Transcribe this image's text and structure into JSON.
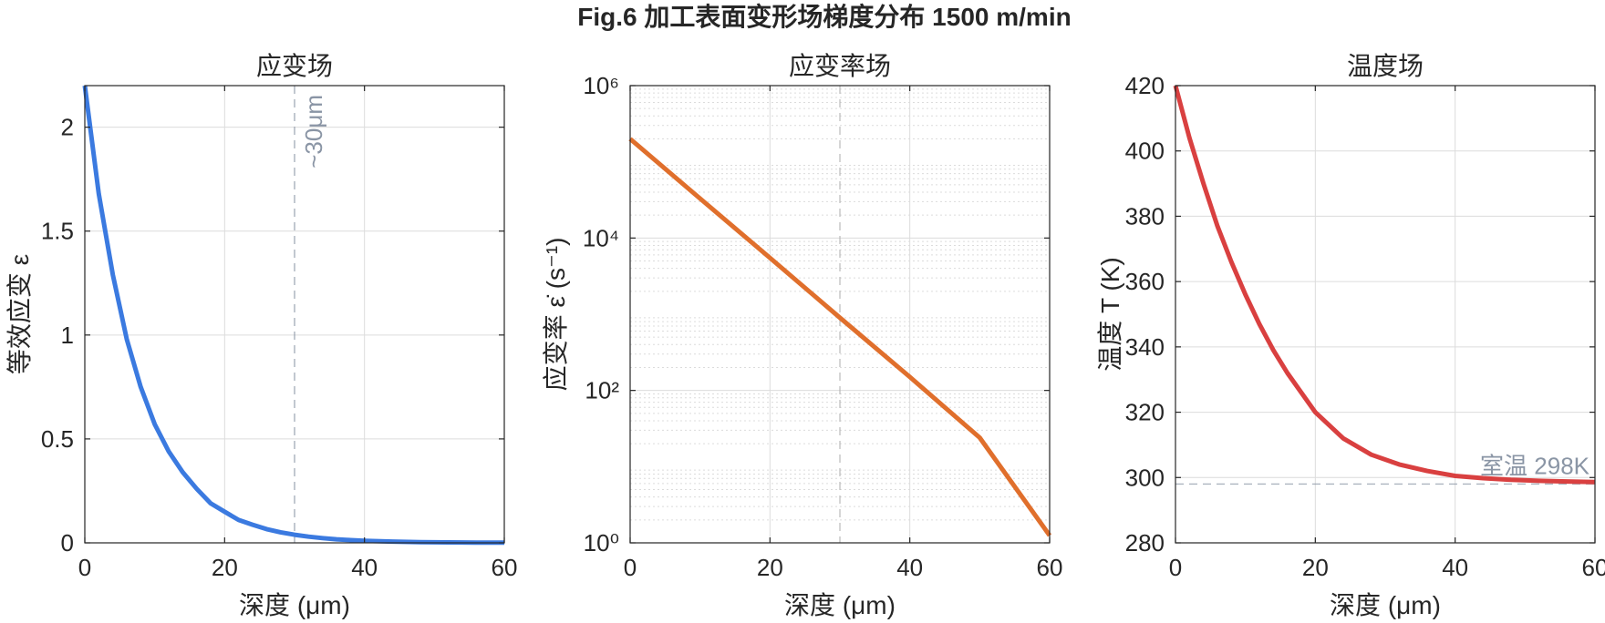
{
  "figure": {
    "title": "Fig.6 加工表面变形场梯度分布 1500 m/min"
  },
  "chart_data": [
    {
      "type": "line",
      "title": "应变场",
      "xlabel": "深度 (μm)",
      "ylabel": "等效应变 ε",
      "xlim": [
        0,
        60
      ],
      "ylim": [
        0,
        2.2
      ],
      "y_scale": "linear",
      "xticks": [
        0,
        20,
        40,
        60
      ],
      "yticks": [
        0,
        0.5,
        1,
        1.5,
        2
      ],
      "ytick_labels": [
        "0",
        "0.5",
        "1",
        "1.5",
        "2"
      ],
      "grid": true,
      "series": [
        {
          "color": "#3b7ae0",
          "x": [
            0,
            2,
            4,
            6,
            8,
            10,
            12,
            14,
            16,
            18,
            20,
            22,
            24,
            26,
            28,
            30,
            32,
            34,
            36,
            38,
            40,
            44,
            48,
            52,
            56,
            60
          ],
          "y": [
            2.2,
            1.68,
            1.29,
            0.98,
            0.75,
            0.57,
            0.44,
            0.34,
            0.26,
            0.19,
            0.15,
            0.11,
            0.087,
            0.066,
            0.051,
            0.039,
            0.03,
            0.023,
            0.017,
            0.013,
            0.01,
            0.006,
            0.003,
            0.002,
            0.001,
            0.001
          ]
        }
      ],
      "reference_lines": [
        {
          "orientation": "vertical",
          "value": 30,
          "label": "~30μm",
          "color": "#8a95a5"
        }
      ]
    },
    {
      "type": "line",
      "title": "应变率场",
      "xlabel": "深度 (μm)",
      "ylabel": "应变率 ε̇ (s⁻¹)",
      "xlim": [
        0,
        60
      ],
      "ylim": [
        1,
        1000000
      ],
      "y_scale": "log",
      "xticks": [
        0,
        20,
        40,
        60
      ],
      "yticks": [
        1,
        100,
        10000,
        1000000
      ],
      "ytick_labels": [
        "10⁰",
        "10²",
        "10⁴",
        "10⁶"
      ],
      "grid": true,
      "minor_grid": true,
      "series": [
        {
          "color": "#e06f2c",
          "x": [
            0,
            10,
            20,
            30,
            40,
            50,
            60
          ],
          "y": [
            200000,
            33000,
            5500,
            900,
            150,
            24,
            1.25
          ]
        }
      ],
      "reference_lines": [
        {
          "orientation": "vertical",
          "value": 30,
          "label": "",
          "color": "#b0b0b0"
        }
      ]
    },
    {
      "type": "line",
      "title": "温度场",
      "xlabel": "深度 (μm)",
      "ylabel": "温度 T (K)",
      "xlim": [
        0,
        60
      ],
      "ylim": [
        280,
        420
      ],
      "y_scale": "linear",
      "xticks": [
        0,
        20,
        40,
        60
      ],
      "yticks": [
        280,
        300,
        320,
        340,
        360,
        380,
        400,
        420
      ],
      "ytick_labels": [
        "280",
        "300",
        "320",
        "340",
        "360",
        "380",
        "400",
        "420"
      ],
      "grid": true,
      "series": [
        {
          "color": "#d94040",
          "x": [
            0,
            2,
            4,
            6,
            8,
            10,
            12,
            14,
            16,
            18,
            20,
            24,
            28,
            32,
            36,
            40,
            44,
            48,
            52,
            56,
            60
          ],
          "y": [
            420,
            404,
            390,
            377,
            366,
            356,
            347,
            339,
            332,
            326,
            320,
            312,
            307,
            304,
            302,
            300.5,
            299.8,
            299.3,
            299,
            298.8,
            298.6
          ]
        }
      ],
      "reference_lines": [
        {
          "orientation": "horizontal",
          "value": 298,
          "label": "室温 298K",
          "color": "#8a95a5"
        }
      ]
    }
  ]
}
